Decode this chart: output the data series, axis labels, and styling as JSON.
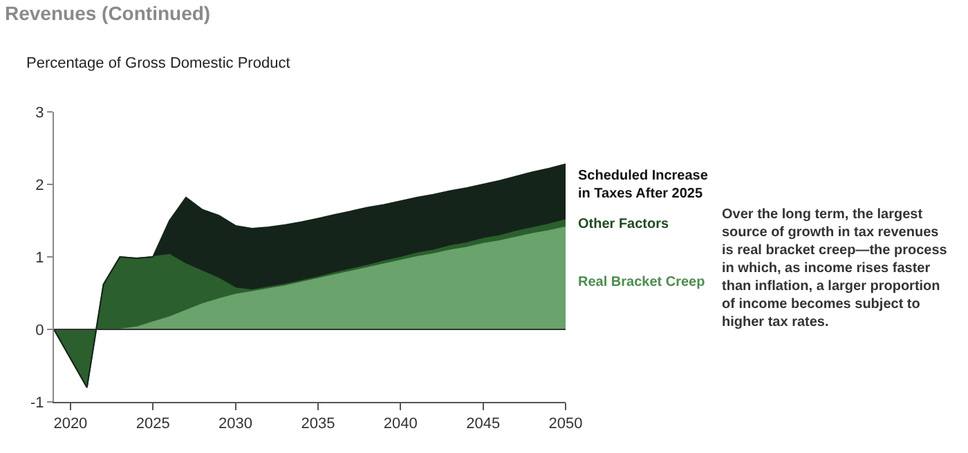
{
  "chart_data": {
    "type": "area",
    "stacked": true,
    "title": "Revenues (Continued)",
    "ylabel": "Percentage of Gross Domestic Product",
    "annotations": [
      "Over the long term, the largest\nsource of growth in tax revenues\nis real bracket creep—the process\nin which, as income rises faster\nthan inflation, a larger proportion\nof income becomes subject to\nhigher tax rates."
    ],
    "x": [
      2019,
      2020,
      2021,
      2022,
      2023,
      2024,
      2025,
      2026,
      2027,
      2028,
      2029,
      2030,
      2031,
      2032,
      2033,
      2034,
      2035,
      2036,
      2037,
      2038,
      2039,
      2040,
      2041,
      2042,
      2043,
      2044,
      2045,
      2046,
      2047,
      2048,
      2049,
      2050
    ],
    "series": [
      {
        "name": "Real Bracket Creep",
        "color": "#6aa36b",
        "values": [
          0,
          0,
          0,
          0,
          0,
          0.03,
          0.1,
          0.17,
          0.26,
          0.35,
          0.42,
          0.48,
          0.52,
          0.56,
          0.6,
          0.65,
          0.7,
          0.75,
          0.8,
          0.85,
          0.9,
          0.95,
          1.0,
          1.04,
          1.09,
          1.13,
          1.18,
          1.22,
          1.27,
          1.32,
          1.36,
          1.41
        ]
      },
      {
        "name": "Other Factors",
        "color": "#2c5f2e",
        "values": [
          0,
          -0.4,
          -0.8,
          0.62,
          1.0,
          0.95,
          0.9,
          0.86,
          0.64,
          0.45,
          0.28,
          0.09,
          0.02,
          0.02,
          0.02,
          0.02,
          0.02,
          0.03,
          0.03,
          0.03,
          0.04,
          0.04,
          0.05,
          0.05,
          0.06,
          0.06,
          0.07,
          0.07,
          0.08,
          0.08,
          0.09,
          0.1
        ]
      },
      {
        "name": "Scheduled Increase\nin Taxes After 2025",
        "color": "#15241a",
        "values": [
          0,
          0,
          0,
          0,
          0,
          0,
          0,
          0.47,
          0.92,
          0.85,
          0.87,
          0.86,
          0.85,
          0.83,
          0.82,
          0.81,
          0.81,
          0.8,
          0.8,
          0.8,
          0.78,
          0.78,
          0.77,
          0.77,
          0.76,
          0.76,
          0.75,
          0.76,
          0.76,
          0.77,
          0.77,
          0.77
        ]
      }
    ],
    "xlim": [
      2019,
      2050
    ],
    "xticks": [
      2020,
      2025,
      2030,
      2035,
      2040,
      2045,
      2050
    ],
    "ylim": [
      -1,
      3
    ],
    "yticks": [
      -1,
      0,
      1,
      2,
      3
    ],
    "ref_lines": [
      {
        "axis": "y",
        "value": 0,
        "color": "#333333"
      }
    ],
    "legend": false
  }
}
